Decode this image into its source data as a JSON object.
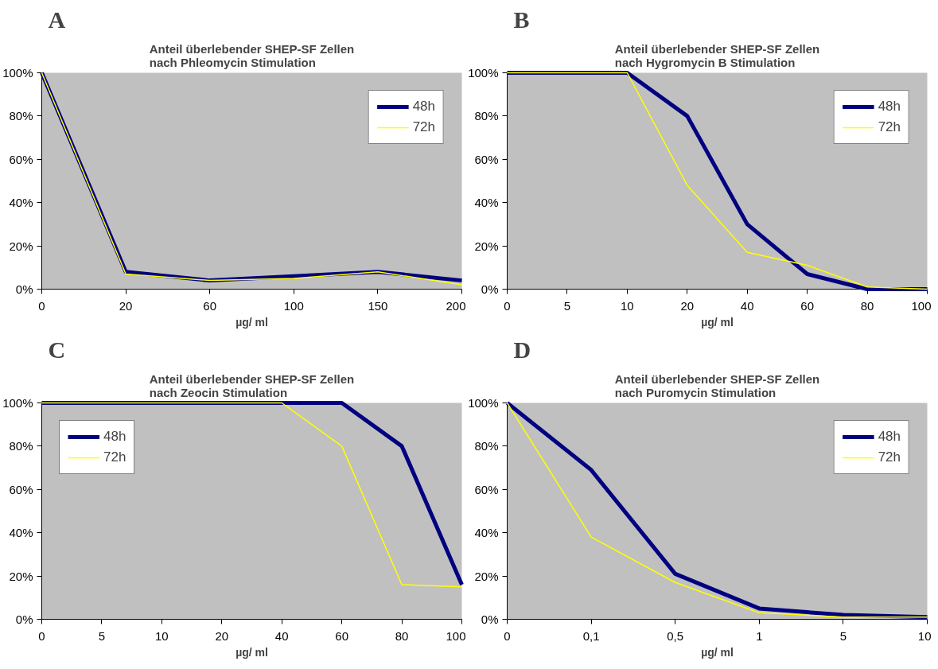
{
  "chart_data": [
    {
      "type": "line",
      "annotations": [
        "A"
      ],
      "title": "Anteil überlebender SHEP-SF Zellen\nnach Phleomycin Stimulation",
      "xlabel": "µg/ ml",
      "categories": [
        "0",
        "20",
        "60",
        "100",
        "150",
        "200"
      ],
      "series": [
        {
          "name": "48h",
          "color": "#000080",
          "values": [
            100,
            8,
            4,
            6,
            8,
            4
          ]
        },
        {
          "name": "72h",
          "color": "#ffff00",
          "values": [
            100,
            7,
            4,
            5,
            8,
            2
          ]
        }
      ],
      "ylim": [
        0,
        100
      ],
      "yticks": [
        {
          "value": 0,
          "label": "0%"
        },
        {
          "value": 20,
          "label": "20%"
        },
        {
          "value": 40,
          "label": "40%"
        },
        {
          "value": 60,
          "label": "60%"
        },
        {
          "value": 80,
          "label": "80%"
        },
        {
          "value": 100,
          "label": "100%"
        }
      ],
      "grid": false,
      "legend": "top right",
      "marker": "none",
      "line_style": "solid"
    },
    {
      "type": "line",
      "annotations": [
        "B"
      ],
      "title": "Anteil überlebender SHEP-SF Zellen\nnach Hygromycin B Stimulation",
      "xlabel": "µg/ ml",
      "categories": [
        "0",
        "5",
        "10",
        "20",
        "40",
        "60",
        "80",
        "100"
      ],
      "series": [
        {
          "name": "48h",
          "color": "#000080",
          "values": [
            100,
            100,
            100,
            80,
            30,
            7,
            0,
            0
          ]
        },
        {
          "name": "72h",
          "color": "#ffff00",
          "values": [
            100,
            100,
            100,
            48,
            17,
            11,
            1,
            0
          ]
        }
      ],
      "ylim": [
        0,
        100
      ],
      "yticks": [
        {
          "value": 0,
          "label": "0%"
        },
        {
          "value": 20,
          "label": "20%"
        },
        {
          "value": 40,
          "label": "40%"
        },
        {
          "value": 60,
          "label": "60%"
        },
        {
          "value": 80,
          "label": "80%"
        },
        {
          "value": 100,
          "label": "100%"
        }
      ],
      "grid": false,
      "legend": "top right",
      "marker": "none",
      "line_style": "solid"
    },
    {
      "type": "line",
      "annotations": [
        "C"
      ],
      "title": "Anteil überlebender SHEP-SF Zellen\nnach Zeocin Stimulation",
      "xlabel": "µg/ ml",
      "categories": [
        "0",
        "5",
        "10",
        "20",
        "40",
        "60",
        "80",
        "100"
      ],
      "series": [
        {
          "name": "48h",
          "color": "#000080",
          "values": [
            100,
            100,
            100,
            100,
            100,
            100,
            80,
            16
          ]
        },
        {
          "name": "72h",
          "color": "#ffff00",
          "values": [
            100,
            100,
            100,
            100,
            100,
            80,
            16,
            15
          ]
        }
      ],
      "ylim": [
        0,
        100
      ],
      "yticks": [
        {
          "value": 0,
          "label": "0%"
        },
        {
          "value": 20,
          "label": "20%"
        },
        {
          "value": 40,
          "label": "40%"
        },
        {
          "value": 60,
          "label": "60%"
        },
        {
          "value": 80,
          "label": "80%"
        },
        {
          "value": 100,
          "label": "100%"
        }
      ],
      "grid": false,
      "legend": "top left",
      "marker": "none",
      "line_style": "solid"
    },
    {
      "type": "line",
      "annotations": [
        "D"
      ],
      "title": "Anteil überlebender SHEP-SF Zellen\nnach Puromycin Stimulation",
      "xlabel": "µg/ ml",
      "categories": [
        "0",
        "0,1",
        "0,5",
        "1",
        "5",
        "10"
      ],
      "series": [
        {
          "name": "48h",
          "color": "#000080",
          "values": [
            100,
            69,
            21,
            5,
            2,
            1
          ]
        },
        {
          "name": "72h",
          "color": "#ffff00",
          "values": [
            100,
            38,
            17,
            3,
            1,
            1
          ]
        }
      ],
      "ylim": [
        0,
        100
      ],
      "yticks": [
        {
          "value": 0,
          "label": "0%"
        },
        {
          "value": 20,
          "label": "20%"
        },
        {
          "value": 40,
          "label": "40%"
        },
        {
          "value": 60,
          "label": "60%"
        },
        {
          "value": 80,
          "label": "80%"
        },
        {
          "value": 100,
          "label": "100%"
        }
      ],
      "grid": false,
      "legend": "top right",
      "marker": "none",
      "line_style": "solid"
    }
  ]
}
